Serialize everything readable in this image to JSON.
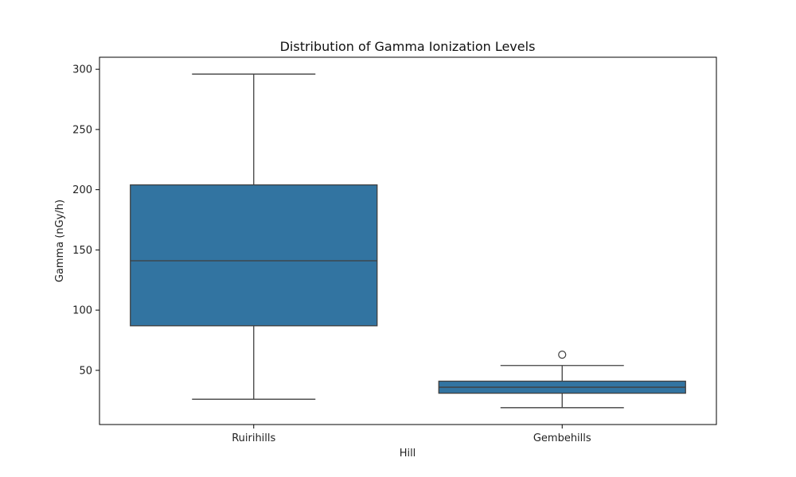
{
  "chart_data": {
    "type": "box",
    "title": "Distribution of Gamma Ionization Levels",
    "xlabel": "Hill",
    "ylabel": "Gamma (nGy/h)",
    "ylim": [
      5,
      310
    ],
    "yticks": [
      50,
      100,
      150,
      200,
      250,
      300
    ],
    "grid": false,
    "legend": "none",
    "box_color": "#3274a1",
    "line_color": "#3f3f3f",
    "categories": [
      "Ruirihills",
      "Gembehills"
    ],
    "boxes": [
      {
        "category": "Ruirihills",
        "whisker_low": 26,
        "q1": 87,
        "median": 141,
        "q3": 204,
        "whisker_high": 296,
        "outliers": []
      },
      {
        "category": "Gembehills",
        "whisker_low": 19,
        "q1": 31,
        "median": 36,
        "q3": 41,
        "whisker_high": 54,
        "outliers": [
          63
        ]
      }
    ]
  }
}
